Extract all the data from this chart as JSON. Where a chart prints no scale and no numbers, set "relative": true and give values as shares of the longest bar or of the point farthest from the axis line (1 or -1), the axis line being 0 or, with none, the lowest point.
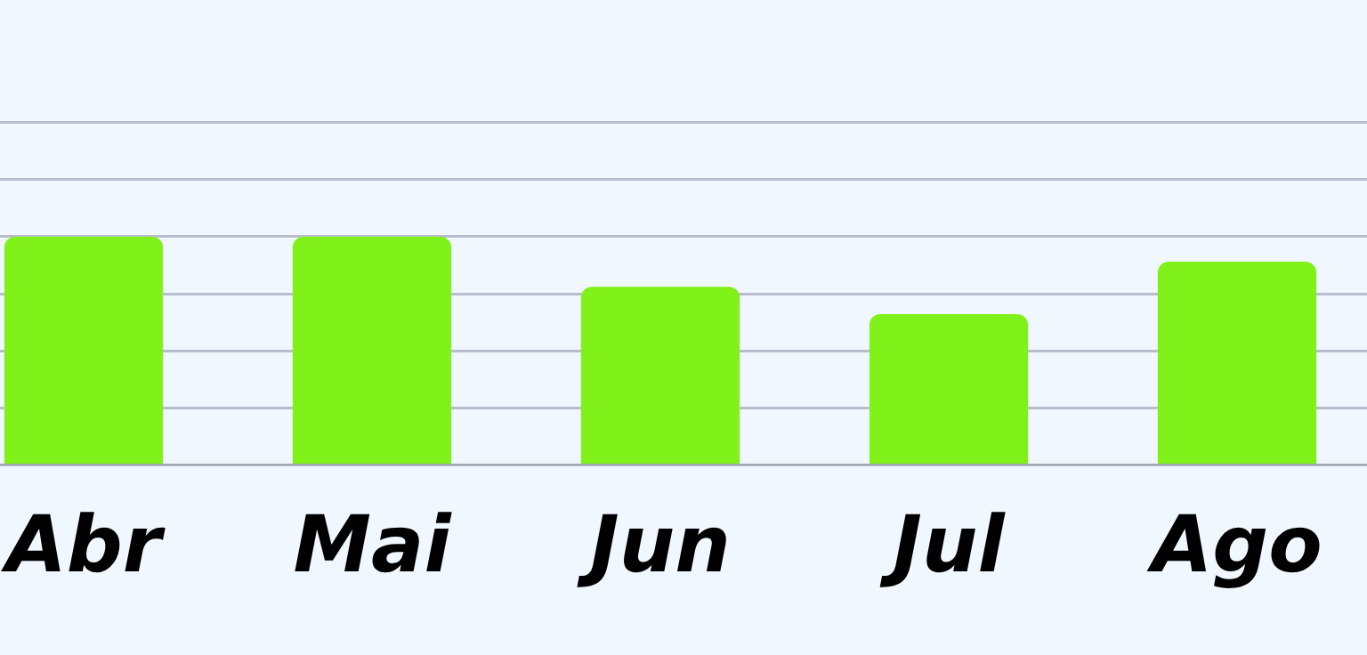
{
  "chart_data": {
    "type": "bar",
    "relative": true,
    "categories": [
      "Abr",
      "Mai",
      "Jun",
      "Jul",
      "Ago"
    ],
    "values": [
      1,
      1,
      0.78,
      0.66,
      0.89
    ],
    "color": "#80f21a",
    "grid": "y"
  }
}
